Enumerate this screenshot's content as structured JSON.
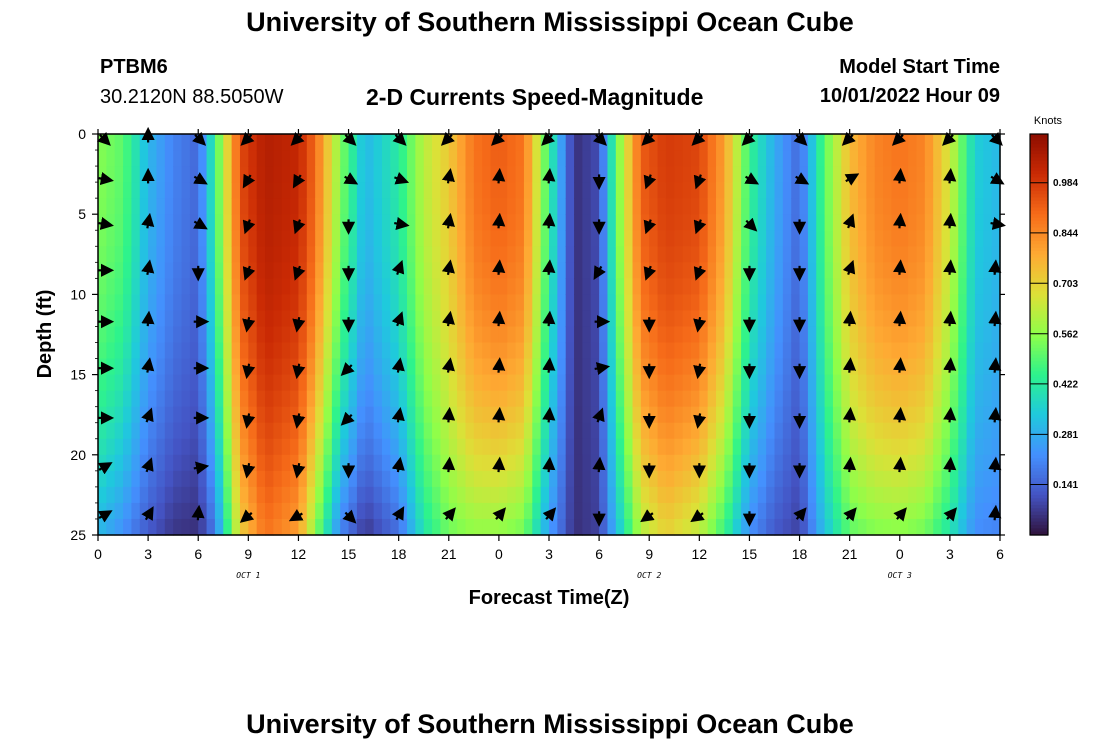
{
  "page": {
    "title": "University of Southern Mississippi Ocean Cube",
    "footer_title": "University of Southern Mississippi Ocean Cube",
    "station": "PTBM6",
    "coords": "30.2120N  88.5050W",
    "subtitle": "2-D Currents Speed-Magnitude",
    "model_start_label": "Model Start Time",
    "model_start_value": "10/01/2022 Hour 09"
  },
  "chart_data": {
    "type": "heatmap",
    "title": "2-D Currents Speed-Magnitude",
    "xlabel": "Forecast Time(Z)",
    "ylabel": "Depth (ft)",
    "x_tick_labels": [
      "0",
      "3",
      "6",
      "9",
      "12",
      "15",
      "18",
      "21",
      "0",
      "3",
      "6",
      "9",
      "12",
      "15",
      "18",
      "21",
      "0",
      "3",
      "6"
    ],
    "date_labels": [
      {
        "label": "OCT 1",
        "at_hour": 9
      },
      {
        "label": "OCT 2",
        "at_hour": 33
      },
      {
        "label": "OCT 3",
        "at_hour": 48
      }
    ],
    "xlim_hours": [
      0,
      54
    ],
    "y_ticks": [
      0,
      5,
      10,
      15,
      20,
      25
    ],
    "ylim_ft": [
      0,
      25
    ],
    "colorbar": {
      "title": "Knots",
      "ticks": [
        0.141,
        0.281,
        0.422,
        0.562,
        0.703,
        0.844,
        0.984
      ],
      "min": 0.0,
      "max": 1.12,
      "colors": [
        "#30123b",
        "#4454c4",
        "#4490fe",
        "#1fc9dd",
        "#2ef38c",
        "#8ffe49",
        "#dde037",
        "#feaa33",
        "#f66b19",
        "#ca2a04",
        "#8c0d00"
      ]
    },
    "speed_profile": {
      "hours": [
        0,
        1.5,
        3,
        4.5,
        6,
        7,
        8.5,
        10,
        12,
        13,
        14.5,
        16,
        18,
        19.5,
        21,
        22.5,
        24,
        25.5,
        27,
        28.5,
        30,
        31,
        32.5,
        34,
        36,
        37.5,
        39,
        40.5,
        42,
        43.5,
        45,
        46.5,
        48,
        49.5,
        51,
        52.5,
        54
      ],
      "surface": [
        0.55,
        0.5,
        0.3,
        0.2,
        0.15,
        0.45,
        0.95,
        1.05,
        1.02,
        0.9,
        0.55,
        0.3,
        0.42,
        0.62,
        0.72,
        0.88,
        0.92,
        0.88,
        0.45,
        0.05,
        0.1,
        0.5,
        0.92,
        0.98,
        0.96,
        0.8,
        0.45,
        0.28,
        0.15,
        0.5,
        0.75,
        0.85,
        0.88,
        0.85,
        0.65,
        0.35,
        0.3
      ],
      "bottom": [
        0.3,
        0.22,
        0.12,
        0.06,
        0.05,
        0.18,
        0.7,
        0.88,
        0.8,
        0.55,
        0.2,
        0.06,
        0.16,
        0.4,
        0.52,
        0.56,
        0.56,
        0.52,
        0.25,
        0.05,
        0.08,
        0.3,
        0.6,
        0.7,
        0.62,
        0.45,
        0.22,
        0.12,
        0.08,
        0.32,
        0.5,
        0.54,
        0.55,
        0.52,
        0.4,
        0.22,
        0.2
      ]
    },
    "arrow_depths_ft": [
      0,
      2.8,
      5.6,
      8.5,
      11.7,
      14.6,
      17.7,
      20.8,
      23.8
    ],
    "arrow_hours": [
      0,
      3,
      6,
      9,
      12,
      15,
      18,
      21,
      24,
      27,
      30,
      33,
      36,
      39,
      42,
      45,
      48,
      51,
      54
    ],
    "arrow_directions_deg": [
      [
        135,
        0,
        135,
        225,
        225,
        135,
        135,
        225,
        225,
        225,
        135,
        225,
        225,
        225,
        135,
        225,
        225,
        225,
        135
      ],
      [
        100,
        0,
        120,
        210,
        210,
        120,
        110,
        10,
        5,
        5,
        180,
        200,
        200,
        120,
        120,
        60,
        5,
        5,
        120
      ],
      [
        100,
        10,
        120,
        200,
        200,
        180,
        100,
        10,
        5,
        5,
        180,
        200,
        200,
        135,
        180,
        20,
        5,
        5,
        100
      ],
      [
        90,
        10,
        180,
        200,
        200,
        180,
        20,
        10,
        5,
        5,
        210,
        200,
        200,
        180,
        180,
        20,
        5,
        5,
        5
      ],
      [
        90,
        5,
        90,
        190,
        190,
        180,
        20,
        10,
        5,
        5,
        90,
        180,
        190,
        180,
        180,
        5,
        5,
        5,
        5
      ],
      [
        90,
        10,
        90,
        190,
        190,
        225,
        10,
        10,
        5,
        5,
        80,
        180,
        190,
        180,
        180,
        5,
        5,
        5,
        5
      ],
      [
        90,
        20,
        90,
        190,
        190,
        225,
        10,
        5,
        5,
        5,
        20,
        180,
        190,
        180,
        180,
        5,
        5,
        5,
        5
      ],
      [
        60,
        20,
        80,
        190,
        190,
        180,
        10,
        5,
        5,
        5,
        5,
        180,
        180,
        180,
        180,
        5,
        5,
        5,
        5
      ],
      [
        60,
        30,
        5,
        230,
        240,
        135,
        30,
        40,
        40,
        40,
        180,
        235,
        235,
        180,
        40,
        40,
        40,
        40,
        5
      ]
    ]
  }
}
